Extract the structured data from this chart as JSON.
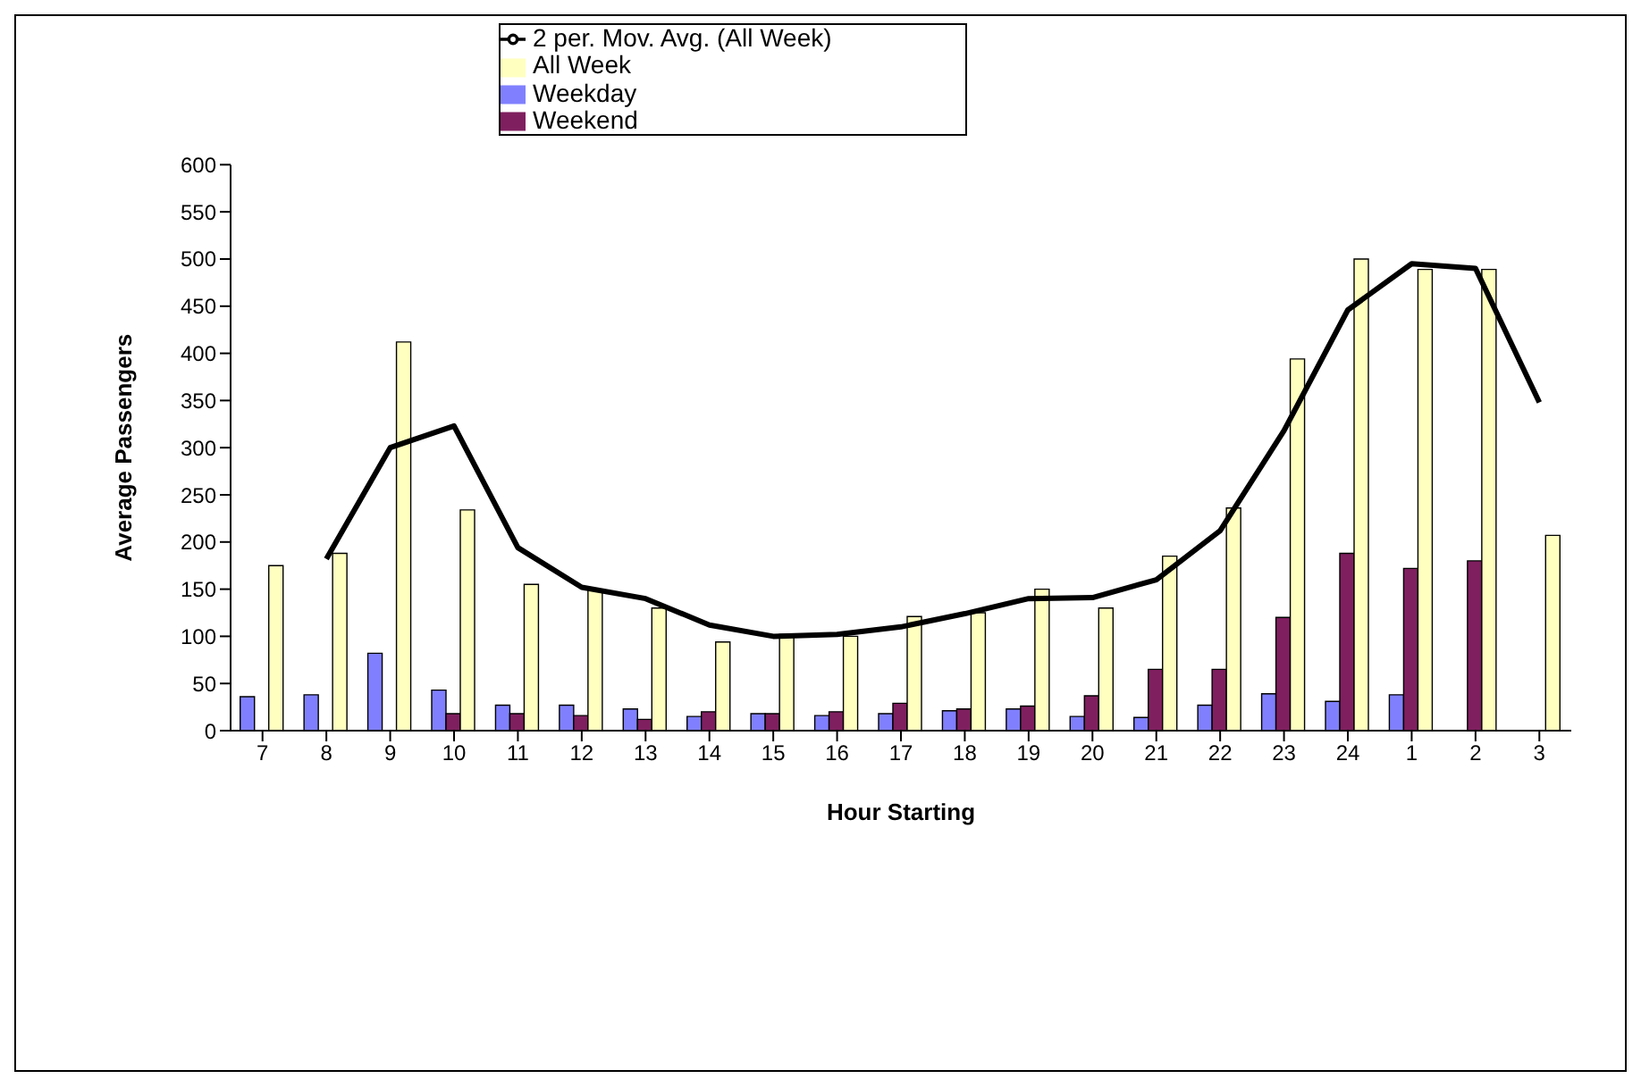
{
  "chart_data": {
    "type": "bar",
    "xlabel": "Hour Starting",
    "ylabel": "Average Passengers",
    "categories": [
      "7",
      "8",
      "9",
      "10",
      "11",
      "12",
      "13",
      "14",
      "15",
      "16",
      "17",
      "18",
      "19",
      "20",
      "21",
      "22",
      "23",
      "24",
      "1",
      "2",
      "3"
    ],
    "series": [
      {
        "name": "Weekday",
        "color": "#8080ff",
        "values": [
          36,
          38,
          82,
          43,
          27,
          27,
          23,
          15,
          18,
          16,
          18,
          21,
          23,
          15,
          14,
          27,
          39,
          31,
          38,
          null,
          null
        ]
      },
      {
        "name": "Weekend",
        "color": "#7f1f5f",
        "values": [
          null,
          null,
          null,
          18,
          18,
          16,
          12,
          20,
          18,
          20,
          29,
          23,
          26,
          37,
          65,
          65,
          120,
          188,
          172,
          180,
          null
        ]
      },
      {
        "name": "All Week",
        "color": "#ffffc0",
        "values": [
          175,
          188,
          412,
          234,
          155,
          150,
          130,
          94,
          102,
          100,
          121,
          125,
          150,
          130,
          185,
          236,
          394,
          500,
          489,
          489,
          207
        ]
      },
      {
        "name": "2 per. Mov. Avg. (All Week)",
        "type": "line",
        "color": "#000000",
        "values": [
          null,
          182,
          300,
          323,
          194,
          152,
          140,
          112,
          100,
          102,
          110,
          124,
          140,
          141,
          160,
          212,
          318,
          446,
          495,
          490,
          348
        ]
      }
    ],
    "ylim": [
      0,
      600
    ],
    "yticks": [
      0,
      50,
      100,
      150,
      200,
      250,
      300,
      350,
      400,
      450,
      500,
      550,
      600
    ],
    "legend": "top",
    "marker": "none"
  }
}
